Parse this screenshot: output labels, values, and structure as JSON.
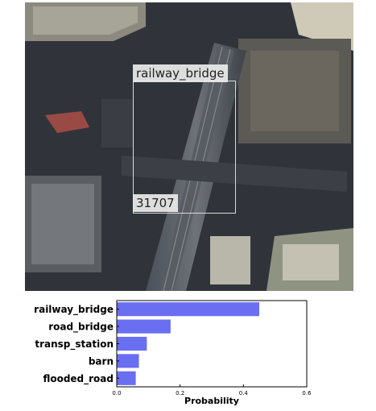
{
  "image": {
    "detection_label": "railway_bridge",
    "detection_id": "31707"
  },
  "chart_data": {
    "type": "bar",
    "orientation": "horizontal",
    "categories": [
      "railway_bridge",
      "road_bridge",
      "transp_station",
      "barn",
      "flooded_road"
    ],
    "values": [
      0.45,
      0.17,
      0.095,
      0.07,
      0.06
    ],
    "xlabel": "Probability",
    "xlim": [
      0,
      0.6
    ],
    "xticks": [
      "0.0",
      "0.2",
      "0.4",
      "0.6"
    ],
    "bar_color": "#6a6ef0",
    "grid": false
  }
}
